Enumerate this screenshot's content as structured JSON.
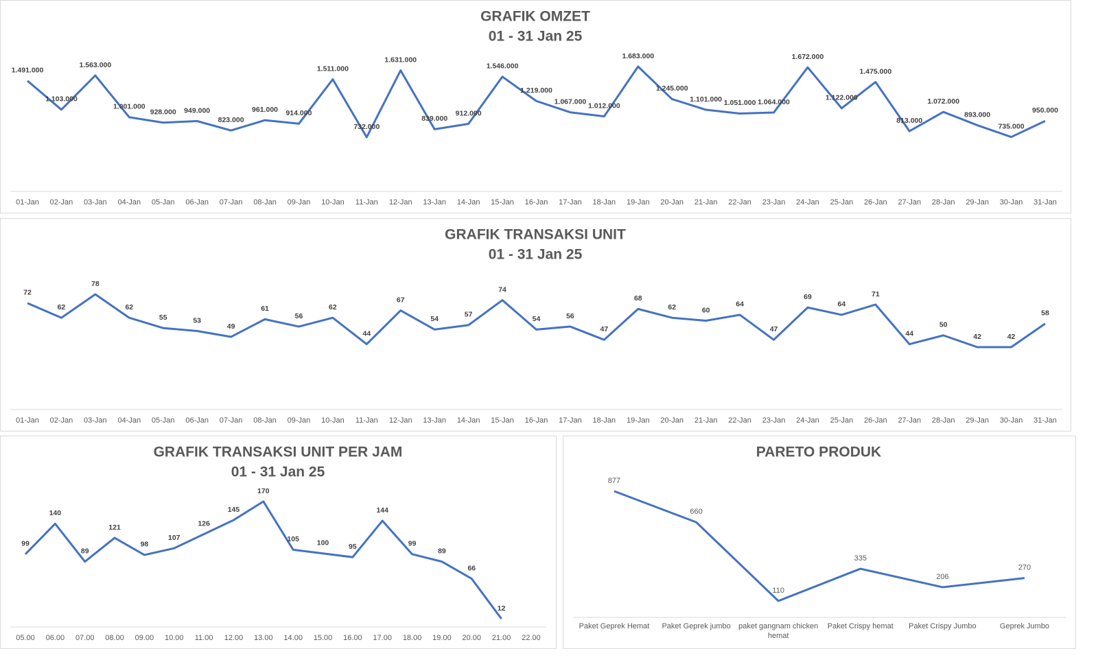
{
  "chart_data": [
    {
      "type": "line",
      "title": "GRAFIK OMZET",
      "subtitle": "01 - 31 Jan 25",
      "categories": [
        "01-Jan",
        "02-Jan",
        "03-Jan",
        "04-Jan",
        "05-Jan",
        "06-Jan",
        "07-Jan",
        "08-Jan",
        "09-Jan",
        "10-Jan",
        "11-Jan",
        "12-Jan",
        "13-Jan",
        "14-Jan",
        "15-Jan",
        "16-Jan",
        "17-Jan",
        "18-Jan",
        "19-Jan",
        "20-Jan",
        "21-Jan",
        "22-Jan",
        "23-Jan",
        "24-Jan",
        "25-Jan",
        "26-Jan",
        "27-Jan",
        "28-Jan",
        "29-Jan",
        "30-Jan",
        "31-Jan"
      ],
      "values": [
        1491000,
        1103000,
        1563000,
        1001000,
        928000,
        949000,
        823000,
        961000,
        914000,
        1511000,
        732000,
        1631000,
        839000,
        912000,
        1546000,
        1219000,
        1067000,
        1012000,
        1683000,
        1245000,
        1101000,
        1051000,
        1064000,
        1672000,
        1122000,
        1475000,
        813000,
        1072000,
        893000,
        735000,
        950000
      ],
      "value_labels": [
        "1.491.000",
        "1.103.000",
        "1.563.000",
        "1.001.000",
        "928.000",
        "949.000",
        "823.000",
        "961.000",
        "914.000",
        "1.511.000",
        "732.000",
        "1.631.000",
        "839.000",
        "912.000",
        "1.546.000",
        "1.219.000",
        "1.067.000",
        "1.012.000",
        "1.683.000",
        "1.245.000",
        "1.101.000",
        "1.051.000",
        "1.064.000",
        "1.672.000",
        "1.122.000",
        "1.475.000",
        "813.000",
        "1.072.000",
        "893.000",
        "735.000",
        "950.000"
      ],
      "color": "#4472c4"
    },
    {
      "type": "line",
      "title": "GRAFIK TRANSAKSI UNIT",
      "subtitle": "01 - 31 Jan 25",
      "categories": [
        "01-Jan",
        "02-Jan",
        "03-Jan",
        "04-Jan",
        "05-Jan",
        "06-Jan",
        "07-Jan",
        "08-Jan",
        "09-Jan",
        "10-Jan",
        "11-Jan",
        "12-Jan",
        "13-Jan",
        "14-Jan",
        "15-Jan",
        "16-Jan",
        "17-Jan",
        "18-Jan",
        "19-Jan",
        "20-Jan",
        "21-Jan",
        "22-Jan",
        "23-Jan",
        "24-Jan",
        "25-Jan",
        "26-Jan",
        "27-Jan",
        "28-Jan",
        "29-Jan",
        "30-Jan",
        "31-Jan"
      ],
      "values": [
        72,
        62,
        78,
        62,
        55,
        53,
        49,
        61,
        56,
        62,
        44,
        67,
        54,
        57,
        74,
        54,
        56,
        47,
        68,
        62,
        60,
        64,
        47,
        69,
        64,
        71,
        44,
        50,
        42,
        42,
        58
      ],
      "color": "#4472c4"
    },
    {
      "type": "line",
      "title": "GRAFIK TRANSAKSI UNIT PER JAM",
      "subtitle": "01 - 31 Jan 25",
      "categories": [
        "05.00",
        "06.00",
        "07.00",
        "08.00",
        "09.00",
        "10.00",
        "11.00",
        "12.00",
        "13.00",
        "14.00",
        "15.00",
        "16.00",
        "17.00",
        "18.00",
        "19.00",
        "20.00",
        "21.00",
        "22.00"
      ],
      "values": [
        99,
        140,
        89,
        121,
        98,
        107,
        126,
        145,
        170,
        105,
        100,
        95,
        144,
        99,
        89,
        66,
        12,
        null
      ],
      "color": "#4472c4"
    },
    {
      "type": "line",
      "title": "PARETO PRODUK",
      "categories": [
        "Paket Geprek Hemat",
        "Paket Geprek jumbo",
        "paket gangnam chicken hemat",
        "Paket Crispy hemat",
        "Paket Crispy Jumbo",
        "Geprek Jumbo"
      ],
      "values": [
        877,
        660,
        110,
        335,
        206,
        270
      ],
      "color": "#4472c4"
    }
  ]
}
